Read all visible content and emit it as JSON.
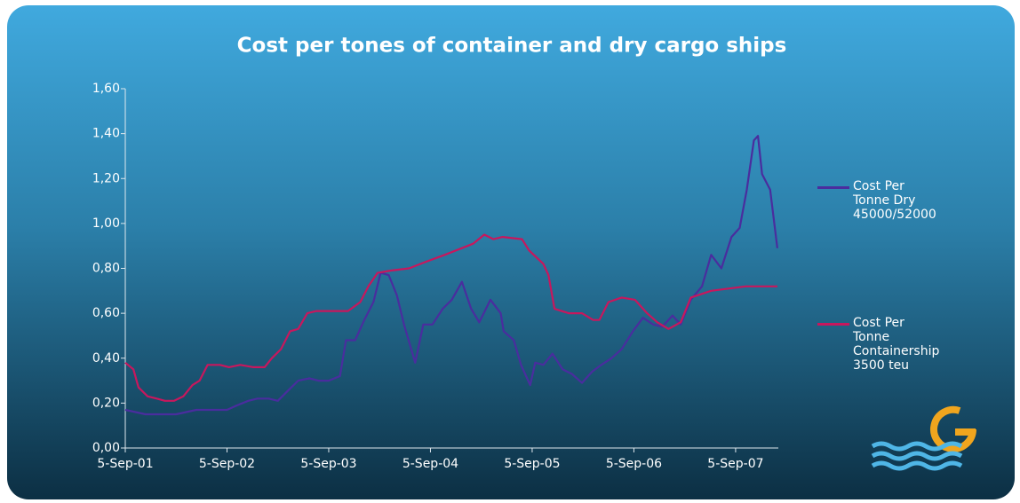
{
  "chart_data": {
    "type": "line",
    "title": "Cost per tones of container and dry cargo ships",
    "xlim": [
      2001.68,
      2008.1
    ],
    "xticks": [
      {
        "value": 2001.68,
        "label": "5-Sep-01"
      },
      {
        "value": 2002.68,
        "label": "5-Sep-02"
      },
      {
        "value": 2003.68,
        "label": "5-Sep-03"
      },
      {
        "value": 2004.68,
        "label": "5-Sep-04"
      },
      {
        "value": 2005.68,
        "label": "5-Sep-05"
      },
      {
        "value": 2006.68,
        "label": "5-Sep-06"
      },
      {
        "value": 2007.68,
        "label": "5-Sep-07"
      }
    ],
    "ylim": [
      0,
      1.6
    ],
    "yticks": [
      {
        "value": 0,
        "label": "0,00"
      },
      {
        "value": 0.2,
        "label": "0,20"
      },
      {
        "value": 0.4,
        "label": "0,40"
      },
      {
        "value": 0.6,
        "label": "0,60"
      },
      {
        "value": 0.8,
        "label": "0,80"
      },
      {
        "value": 1.0,
        "label": "1,00"
      },
      {
        "value": 1.2,
        "label": "1,20"
      },
      {
        "value": 1.4,
        "label": "1,40"
      },
      {
        "value": 1.6,
        "label": "1,60"
      }
    ],
    "legend": "right",
    "series": [
      {
        "name": "Cost Per Tonne Dry 45000/52000",
        "color": "#4a2d9e",
        "x": [
          2001.68,
          2001.78,
          2001.88,
          2001.98,
          2002.08,
          2002.18,
          2002.28,
          2002.38,
          2002.48,
          2002.58,
          2002.68,
          2002.78,
          2002.89,
          2002.98,
          2003.09,
          2003.18,
          2003.29,
          2003.38,
          2003.49,
          2003.58,
          2003.68,
          2003.79,
          2003.85,
          2003.94,
          2004.03,
          2004.12,
          2004.19,
          2004.27,
          2004.35,
          2004.42,
          2004.53,
          2004.61,
          2004.7,
          2004.8,
          2004.89,
          2004.99,
          2005.08,
          2005.16,
          2005.27,
          2005.37,
          2005.4,
          2005.5,
          2005.57,
          2005.66,
          2005.71,
          2005.79,
          2005.88,
          2005.98,
          2006.07,
          2006.17,
          2006.27,
          2006.36,
          2006.46,
          2006.56,
          2006.67,
          2006.77,
          2006.87,
          2006.96,
          2007.06,
          2007.14,
          2007.24,
          2007.35,
          2007.44,
          2007.54,
          2007.64,
          2007.72,
          2007.79,
          2007.86,
          2007.9,
          2007.94,
          2008.02,
          2008.09
        ],
        "values": [
          0.17,
          0.16,
          0.15,
          0.15,
          0.15,
          0.15,
          0.16,
          0.17,
          0.17,
          0.17,
          0.17,
          0.19,
          0.21,
          0.22,
          0.22,
          0.21,
          0.26,
          0.3,
          0.31,
          0.3,
          0.3,
          0.32,
          0.48,
          0.48,
          0.57,
          0.65,
          0.78,
          0.77,
          0.68,
          0.55,
          0.38,
          0.55,
          0.55,
          0.62,
          0.66,
          0.74,
          0.62,
          0.56,
          0.66,
          0.6,
          0.52,
          0.48,
          0.37,
          0.28,
          0.38,
          0.37,
          0.42,
          0.35,
          0.33,
          0.29,
          0.34,
          0.37,
          0.4,
          0.44,
          0.52,
          0.58,
          0.55,
          0.54,
          0.59,
          0.55,
          0.66,
          0.72,
          0.86,
          0.8,
          0.94,
          0.98,
          1.15,
          1.37,
          1.39,
          1.22,
          1.15,
          0.89
        ]
      },
      {
        "name": "Cost Per Tonne Containership 3500 teu",
        "color": "#c8175d",
        "x": [
          2001.68,
          2001.76,
          2001.81,
          2001.9,
          2001.99,
          2002.07,
          2002.16,
          2002.25,
          2002.34,
          2002.41,
          2002.49,
          2002.61,
          2002.7,
          2002.81,
          2002.94,
          2003.05,
          2003.12,
          2003.21,
          2003.3,
          2003.38,
          2003.47,
          2003.56,
          2003.73,
          2003.87,
          2003.99,
          2004.07,
          2004.16,
          2004.29,
          2004.47,
          2004.64,
          2004.82,
          2004.99,
          2005.1,
          2005.21,
          2005.3,
          2005.39,
          2005.58,
          2005.65,
          2005.79,
          2005.84,
          2005.9,
          2006.04,
          2006.17,
          2006.28,
          2006.34,
          2006.43,
          2006.56,
          2006.69,
          2006.81,
          2006.91,
          2007.02,
          2007.14,
          2007.24,
          2007.44,
          2007.61,
          2007.78,
          2007.96,
          2008.09
        ],
        "values": [
          0.38,
          0.35,
          0.27,
          0.23,
          0.22,
          0.21,
          0.21,
          0.23,
          0.28,
          0.3,
          0.37,
          0.37,
          0.36,
          0.37,
          0.36,
          0.36,
          0.4,
          0.44,
          0.52,
          0.53,
          0.6,
          0.61,
          0.61,
          0.61,
          0.65,
          0.72,
          0.78,
          0.79,
          0.8,
          0.83,
          0.86,
          0.89,
          0.91,
          0.95,
          0.93,
          0.94,
          0.93,
          0.88,
          0.82,
          0.77,
          0.62,
          0.6,
          0.6,
          0.57,
          0.57,
          0.65,
          0.67,
          0.66,
          0.6,
          0.56,
          0.53,
          0.56,
          0.67,
          0.7,
          0.71,
          0.72,
          0.72,
          0.72
        ]
      }
    ]
  }
}
